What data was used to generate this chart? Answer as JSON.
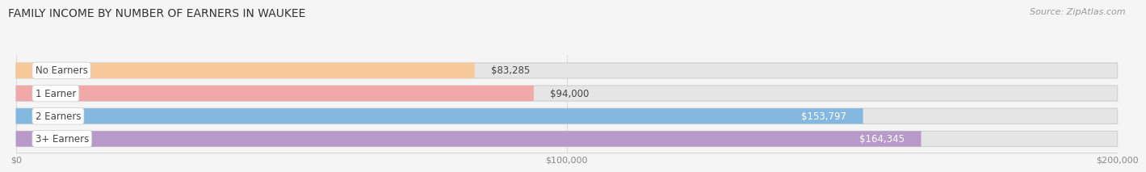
{
  "title": "FAMILY INCOME BY NUMBER OF EARNERS IN WAUKEE",
  "source": "Source: ZipAtlas.com",
  "categories": [
    "No Earners",
    "1 Earner",
    "2 Earners",
    "3+ Earners"
  ],
  "values": [
    83285,
    94000,
    153797,
    164345
  ],
  "bar_colors": [
    "#f7c99a",
    "#f0a8a8",
    "#85b8e0",
    "#b89ac8"
  ],
  "bar_bg_color": "#efefef",
  "label_colors_inside": [
    "#555555",
    "#555555",
    "#ffffff",
    "#ffffff"
  ],
  "value_labels": [
    "$83,285",
    "$94,000",
    "$153,797",
    "$164,345"
  ],
  "value_inside": [
    false,
    false,
    true,
    true
  ],
  "xlim": [
    0,
    200000
  ],
  "xtick_labels": [
    "$0",
    "$100,000",
    "$200,000"
  ],
  "background_color": "#f5f5f5",
  "bar_background": "#e5e5e5",
  "title_fontsize": 10,
  "source_fontsize": 8,
  "label_fontsize": 8.5,
  "value_fontsize": 8.5
}
